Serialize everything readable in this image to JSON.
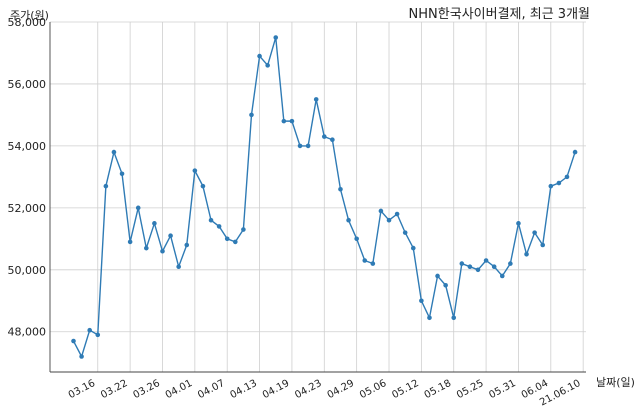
{
  "chart_data": {
    "type": "line",
    "title": "NHN한국사이버결제, 최근 3개월",
    "ylabel": "주가(원)",
    "xlabel": "날짜(일)",
    "ylim": [
      46700,
      58000
    ],
    "yticks": [
      48000,
      50000,
      52000,
      54000,
      56000,
      58000
    ],
    "ytick_labels": [
      "48,000",
      "50,000",
      "52,000",
      "54,000",
      "56,000",
      "58,000"
    ],
    "xtick_labels": [
      "03.16",
      "03.22",
      "03.26",
      "04.01",
      "04.07",
      "04.13",
      "04.19",
      "04.23",
      "04.29",
      "05.06",
      "05.12",
      "05.18",
      "05.25",
      "05.31",
      "06.04",
      "21.06.10"
    ],
    "xtick_index": [
      3,
      7,
      11,
      15,
      19,
      23,
      27,
      31,
      35,
      39,
      43,
      47,
      51,
      55,
      59,
      63
    ],
    "grid": true,
    "line_color": "#2f7bb5",
    "series": [
      {
        "values": [
          47700,
          47200,
          48050,
          47900,
          52700,
          53800,
          53100,
          50900,
          52000,
          50700,
          51500,
          50600,
          51100,
          50100,
          50800,
          53200,
          52700,
          51600,
          51400,
          51000,
          50900,
          51300,
          55000,
          56900,
          56600,
          57500,
          54800,
          54800,
          54000,
          54000,
          55500,
          54300,
          54200,
          52600,
          51600,
          51000,
          50300,
          50200,
          51900,
          51600,
          51800,
          51200,
          50700,
          49000,
          48450,
          49800,
          49500,
          48450,
          50200,
          50100,
          50000,
          50300,
          50100,
          49800,
          50200,
          51500,
          50500,
          51200,
          50800,
          52700,
          52800,
          53000,
          53800
        ]
      }
    ]
  }
}
